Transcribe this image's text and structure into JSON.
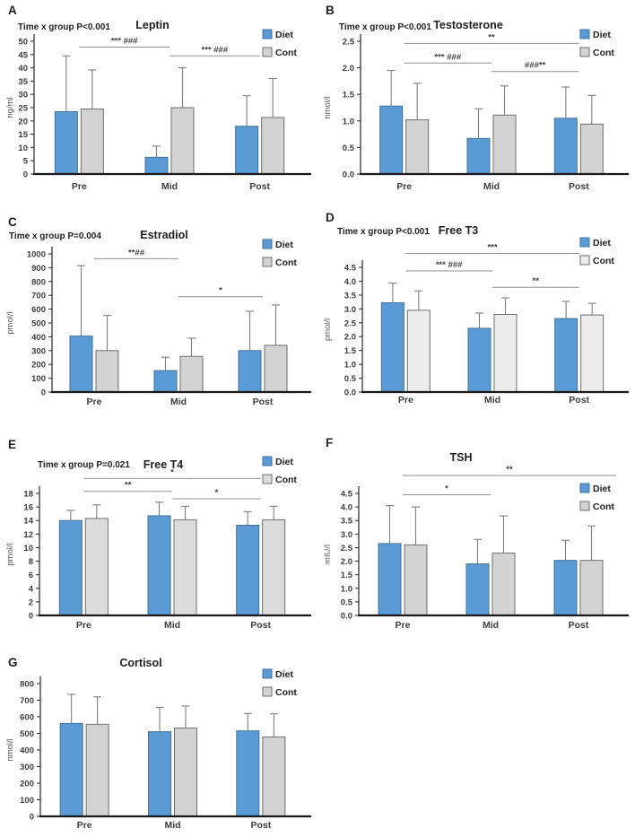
{
  "figure": {
    "background": "#ffffff",
    "categories_shared": [
      "Pre",
      "Mid",
      "Post"
    ]
  },
  "colors": {
    "diet_fill": "#5B9BD5",
    "diet_stroke": "#41719C",
    "cont_stroke": "#6E6E6E",
    "error_bar": "#7f7f7f",
    "significance_line": "#8f8f8f"
  },
  "chart_data": [
    {
      "type": "bar",
      "panel": "A",
      "title": "Leptin",
      "interaction": "Time x group P<0.001",
      "ylabel": "ng/ml",
      "ylim": [
        0,
        50
      ],
      "ystep": 5,
      "ydecimals": 0,
      "categories": [
        "Pre",
        "Mid",
        "Post"
      ],
      "grid": false,
      "legend_position": "top-right",
      "series": [
        {
          "name": "Diet",
          "fill": "#5B9BD5",
          "stroke": "#41719C",
          "values": [
            23.5,
            6.3,
            18.0
          ],
          "errors": [
            21.0,
            4.2,
            11.5
          ]
        },
        {
          "name": "Cont",
          "fill": "#D3D3D3",
          "stroke": "#6E6E6E",
          "values": [
            24.5,
            25.0,
            21.3
          ],
          "errors": [
            14.7,
            15.0,
            14.7
          ]
        }
      ],
      "annotations": [
        {
          "from": 0,
          "to": 1,
          "y": 47.8,
          "label": "*** ###"
        },
        {
          "from": 1,
          "to": 2,
          "y": 44.5,
          "label": "*** ###"
        }
      ]
    },
    {
      "type": "bar",
      "panel": "B",
      "title": "Testosterone",
      "interaction": "Time x group P<0.001",
      "ylabel": "nmol/l",
      "ylim": [
        0,
        2.5
      ],
      "ystep": 0.5,
      "ydecimals": 1,
      "categories": [
        "Pre",
        "Mid",
        "Post"
      ],
      "grid": false,
      "legend_position": "top-right",
      "series": [
        {
          "name": "Diet",
          "fill": "#5B9BD5",
          "stroke": "#41719C",
          "values": [
            1.28,
            0.67,
            1.05
          ],
          "errors": [
            0.67,
            0.56,
            0.59
          ]
        },
        {
          "name": "Cont",
          "fill": "#D3D3D3",
          "stroke": "#6E6E6E",
          "values": [
            1.02,
            1.11,
            0.94
          ],
          "errors": [
            0.69,
            0.55,
            0.54
          ]
        }
      ],
      "annotations": [
        {
          "from": 0,
          "to": 2,
          "y": 2.46,
          "label": "**"
        },
        {
          "from": 0,
          "to": 1,
          "y": 2.09,
          "label": "*** ###"
        },
        {
          "from": 1,
          "to": 2,
          "y": 1.93,
          "label": "###**"
        }
      ]
    },
    {
      "type": "bar",
      "panel": "C",
      "title": "Estradiol",
      "interaction": "Time x group P=0.004",
      "ylabel": "pmol/l",
      "ylim": [
        0,
        1000
      ],
      "ystep": 100,
      "ydecimals": 0,
      "categories": [
        "Pre",
        "Mid",
        "Post"
      ],
      "grid": false,
      "legend_position": "top-right",
      "series": [
        {
          "name": "Diet",
          "fill": "#5B9BD5",
          "stroke": "#41719C",
          "values": [
            405,
            155,
            300
          ],
          "errors": [
            510,
            97,
            285
          ]
        },
        {
          "name": "Cont",
          "fill": "#D3D3D3",
          "stroke": "#6E6E6E",
          "values": [
            300,
            258,
            338
          ],
          "errors": [
            255,
            132,
            292
          ]
        }
      ],
      "annotations": [
        {
          "from": 0,
          "to": 1,
          "y": 965,
          "label": "**##"
        },
        {
          "from": 1,
          "to": 2,
          "y": 690,
          "label": "*"
        }
      ]
    },
    {
      "type": "bar",
      "panel": "D",
      "title": "Free T3",
      "interaction": "Time x group P<0.001",
      "ylabel": "pmol/l",
      "ylim": [
        0,
        4.5
      ],
      "ystep": 0.5,
      "ydecimals": 1,
      "categories": [
        "Pre",
        "Mid",
        "Post"
      ],
      "grid": false,
      "legend_position": "top-right",
      "series": [
        {
          "name": "Diet",
          "fill": "#5B9BD5",
          "stroke": "#41719C",
          "values": [
            3.22,
            2.3,
            2.65
          ],
          "errors": [
            0.71,
            0.55,
            0.62
          ]
        },
        {
          "name": "Cont",
          "fill": "#ECECEC",
          "stroke": "#6E6E6E",
          "values": [
            2.95,
            2.8,
            2.78
          ],
          "errors": [
            0.7,
            0.6,
            0.42
          ]
        }
      ],
      "annotations": [
        {
          "from": 0,
          "to": 2,
          "y": 5.0,
          "label": "***"
        },
        {
          "from": 0,
          "to": 1,
          "y": 4.37,
          "label": "*** ###"
        },
        {
          "from": 1,
          "to": 2,
          "y": 3.78,
          "label": "**"
        }
      ]
    },
    {
      "type": "bar",
      "panel": "E",
      "title": "Free T4",
      "interaction": "Time x group P=0.021",
      "ylabel": "pmol/l",
      "ylim": [
        0,
        18
      ],
      "ystep": 2,
      "ydecimals": 0,
      "categories": [
        "Pre",
        "Mid",
        "Post"
      ],
      "grid": false,
      "legend_position": "top-right",
      "series": [
        {
          "name": "Diet",
          "fill": "#5B9BD5",
          "stroke": "#41719C",
          "values": [
            14.0,
            14.7,
            13.3
          ],
          "errors": [
            1.5,
            2.0,
            2.0
          ]
        },
        {
          "name": "Cont",
          "fill": "#DCDCDC",
          "stroke": "#6E6E6E",
          "values": [
            14.3,
            14.1,
            14.1
          ],
          "errors": [
            2.0,
            2.0,
            2.0
          ]
        }
      ],
      "annotations": [
        {
          "from": 0,
          "to": 2,
          "y": 20.2,
          "label": "*"
        },
        {
          "from": 0,
          "to": 1,
          "y": 18.3,
          "label": "**"
        },
        {
          "from": 1,
          "to": 2,
          "y": 17.2,
          "label": "*"
        }
      ]
    },
    {
      "type": "bar",
      "panel": "F",
      "title": "TSH",
      "interaction": null,
      "ylabel": "mIU/l",
      "ylim": [
        0,
        4.5
      ],
      "ystep": 0.5,
      "ydecimals": 1,
      "categories": [
        "Pre",
        "Mid",
        "Post"
      ],
      "grid": false,
      "legend_position": "right",
      "series": [
        {
          "name": "Diet",
          "fill": "#5B9BD5",
          "stroke": "#41719C",
          "values": [
            2.65,
            1.9,
            2.03
          ],
          "errors": [
            1.4,
            0.9,
            0.74
          ]
        },
        {
          "name": "Cont",
          "fill": "#D3D3D3",
          "stroke": "#6E6E6E",
          "values": [
            2.6,
            2.3,
            2.03
          ],
          "errors": [
            1.4,
            1.37,
            1.27
          ]
        }
      ],
      "annotations": [
        {
          "from": 0,
          "to": 2,
          "y": 5.16,
          "label": "**",
          "padR": 42
        },
        {
          "from": 0,
          "to": 1,
          "y": 4.45,
          "label": "*"
        }
      ]
    },
    {
      "type": "bar",
      "panel": "G",
      "title": "Cortisol",
      "interaction": null,
      "ylabel": "nmol/l",
      "ylim": [
        0,
        800
      ],
      "ystep": 100,
      "ydecimals": 0,
      "categories": [
        "Pre",
        "Mid",
        "Post"
      ],
      "grid": false,
      "legend_position": "top-right",
      "series": [
        {
          "name": "Diet",
          "fill": "#5B9BD5",
          "stroke": "#41719C",
          "values": [
            560,
            510,
            515
          ],
          "errors": [
            175,
            147,
            105
          ]
        },
        {
          "name": "Cont",
          "fill": "#D3D3D3",
          "stroke": "#6E6E6E",
          "values": [
            555,
            532,
            478
          ],
          "errors": [
            165,
            133,
            140
          ]
        }
      ],
      "annotations": []
    }
  ]
}
